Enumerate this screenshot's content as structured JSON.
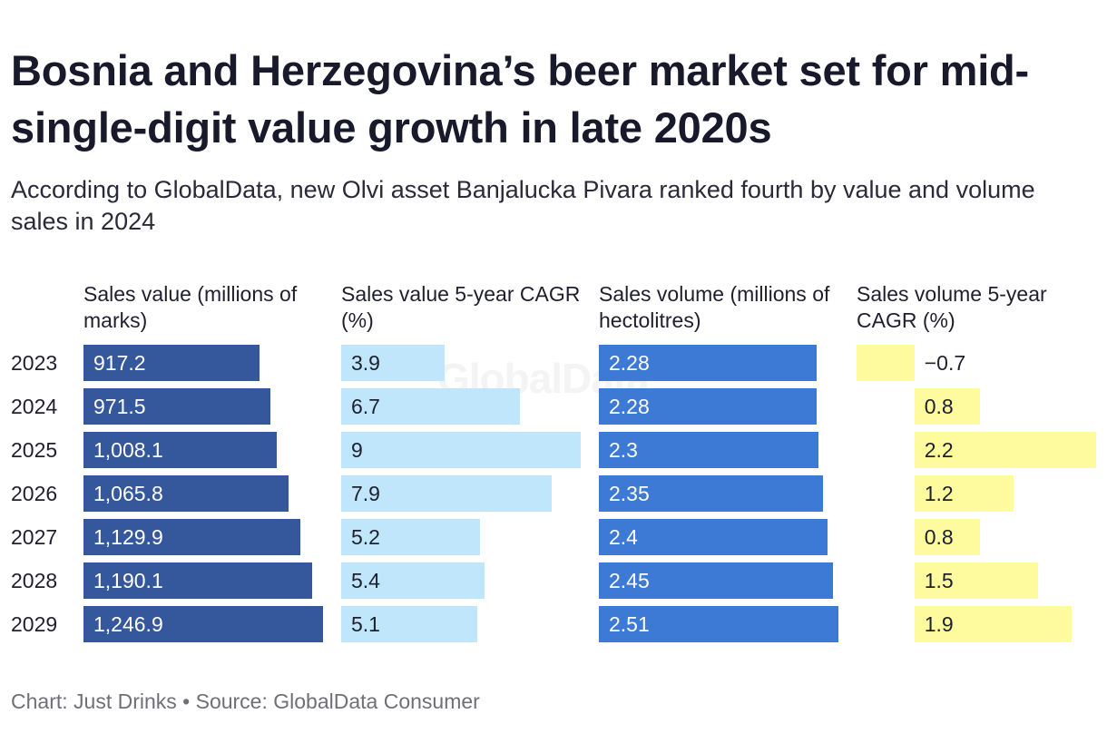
{
  "title": "Bosnia and Herzegovina’s beer market set for mid-single-digit value growth in late 2020s",
  "subtitle": "According to GlobalData, new Olvi asset Banjalucka Pivara ranked fourth by value and volume sales in 2024",
  "footer": "Chart: Just Drinks • Source: GlobalData Consumer",
  "watermark": "GlobalData",
  "chart_data": {
    "type": "bar",
    "orientation": "horizontal",
    "categories": [
      "2023",
      "2024",
      "2025",
      "2026",
      "2027",
      "2028",
      "2029"
    ],
    "series": [
      {
        "name": "Sales value (millions of marks)",
        "color": "#34589b",
        "label_color": "#ffffff",
        "values": [
          917.2,
          971.5,
          1008.1,
          1065.8,
          1129.9,
          1190.1,
          1246.9
        ],
        "labels": [
          "917.2",
          "971.5",
          "1,008.1",
          "1,065.8",
          "1,129.9",
          "1,190.1",
          "1,246.9"
        ],
        "xlim": [
          0,
          1246.9
        ]
      },
      {
        "name": "Sales value 5-year CAGR (%)",
        "color": "#bfe6fb",
        "label_color": "#1f1f2e",
        "values": [
          3.9,
          6.7,
          9,
          7.9,
          5.2,
          5.4,
          5.1
        ],
        "labels": [
          "3.9",
          "6.7",
          "9",
          "7.9",
          "5.2",
          "5.4",
          "5.1"
        ],
        "xlim": [
          0,
          9
        ]
      },
      {
        "name": "Sales volume (millions of hectolitres)",
        "color": "#3c7ad6",
        "label_color": "#ffffff",
        "values": [
          2.28,
          2.28,
          2.3,
          2.35,
          2.4,
          2.45,
          2.51
        ],
        "labels": [
          "2.28",
          "2.28",
          "2.3",
          "2.35",
          "2.4",
          "2.45",
          "2.51"
        ],
        "xlim": [
          0,
          2.51
        ]
      },
      {
        "name": "Sales volume 5-year CAGR (%)",
        "color": "#fdfb9e",
        "label_color": "#1f1f2e",
        "values": [
          -0.7,
          0.8,
          2.2,
          1.2,
          0.8,
          1.5,
          1.9
        ],
        "labels": [
          "−0.7",
          "0.8",
          "2.2",
          "1.2",
          "0.8",
          "1.5",
          "1.9"
        ],
        "xlim": [
          -0.7,
          2.2
        ]
      }
    ]
  }
}
